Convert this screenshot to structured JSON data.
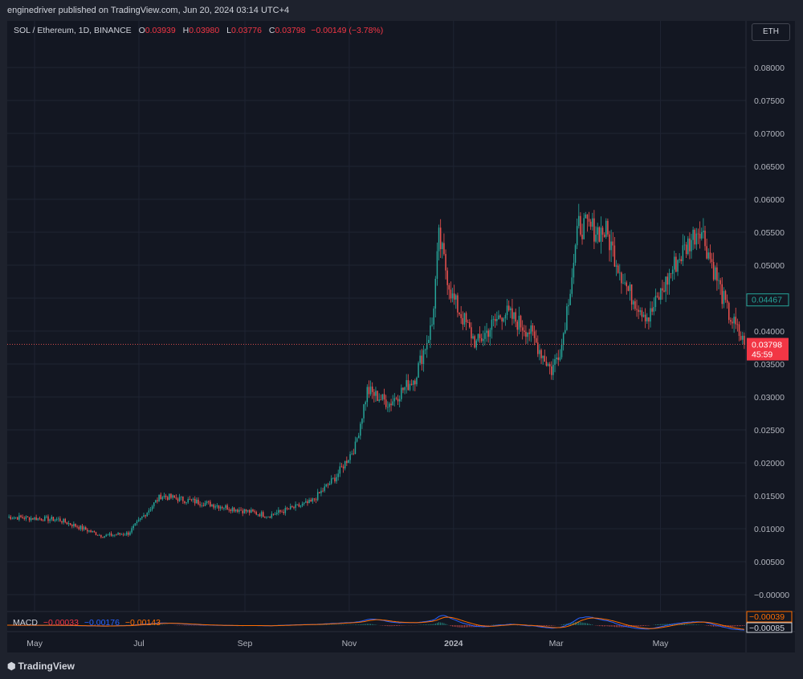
{
  "header": {
    "published": "enginedriver published on TradingView.com, Jun 20, 2024 03:14 UTC+4"
  },
  "legend": {
    "symbol": "SOL / Ethereum, 1D, BINANCE",
    "o_label": "O",
    "o_value": "0.03939",
    "h_label": "H",
    "h_value": "0.03980",
    "l_label": "L",
    "l_value": "0.03776",
    "c_label": "C",
    "c_value": "0.03798",
    "change": "−0.00149 (−3.78%)"
  },
  "currency_button": "ETH",
  "macd": {
    "label": "MACD",
    "v1": "−0.00033",
    "v2": "−0.00176",
    "v3": "−0.00143",
    "badge_signal": "−0.00039",
    "badge_macd": "−0.00085"
  },
  "price_badges": {
    "last": "0.03798",
    "countdown": "45:59",
    "marker": "0.04467"
  },
  "footer": {
    "brand": "TradingView"
  },
  "colors": {
    "up": "#26a69a",
    "down": "#ef5350",
    "background": "#131722",
    "macd": "#2962ff",
    "signal": "#ff6d00"
  },
  "chart_data": {
    "type": "candlestick",
    "title": "SOL / Ethereum, 1D, BINANCE",
    "y_ticks": [
      "0.08000",
      "0.07500",
      "0.07000",
      "0.06500",
      "0.06000",
      "0.05500",
      "0.05000",
      "0.04500",
      "0.04000",
      "0.03500",
      "0.03000",
      "0.02500",
      "0.02000",
      "0.01500",
      "0.01000",
      "0.00500",
      "−0.00000"
    ],
    "x_ticks": [
      "May",
      "Jul",
      "Sep",
      "Nov",
      "2024",
      "Mar",
      "May"
    ],
    "ylim": [
      0,
      0.08
    ],
    "x_range": [
      "2023-04-15",
      "2024-06-20"
    ],
    "series": [
      {
        "name": "price",
        "x": [
          "2023-04-15",
          "2023-05-15",
          "2023-06-10",
          "2023-06-25",
          "2023-07-14",
          "2023-08-15",
          "2023-09-15",
          "2023-10-10",
          "2023-10-25",
          "2023-11-05",
          "2023-11-12",
          "2023-11-25",
          "2023-12-10",
          "2023-12-20",
          "2023-12-24",
          "2024-01-01",
          "2024-01-15",
          "2024-01-31",
          "2024-02-15",
          "2024-02-28",
          "2024-03-05",
          "2024-03-15",
          "2024-03-31",
          "2024-04-13",
          "2024-04-25",
          "2024-05-10",
          "2024-05-25",
          "2024-06-10",
          "2024-06-20"
        ],
        "values": [
          0.0118,
          0.0114,
          0.0089,
          0.0093,
          0.015,
          0.0136,
          0.012,
          0.014,
          0.018,
          0.0225,
          0.031,
          0.029,
          0.033,
          0.041,
          0.054,
          0.045,
          0.038,
          0.043,
          0.04,
          0.034,
          0.038,
          0.056,
          0.055,
          0.046,
          0.042,
          0.05,
          0.056,
          0.043,
          0.038
        ]
      }
    ],
    "last_price": 0.03798
  }
}
